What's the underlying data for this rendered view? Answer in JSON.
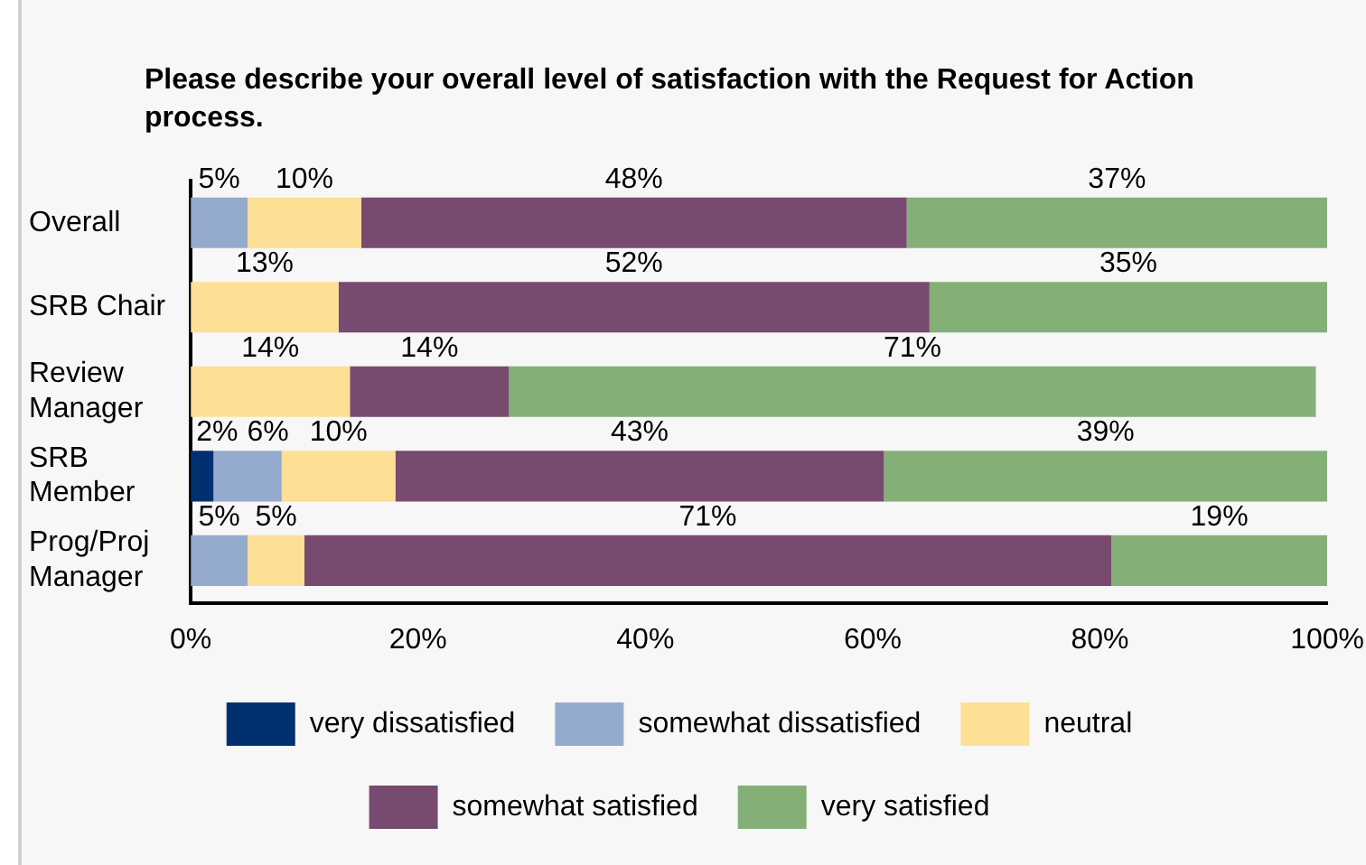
{
  "chart_data": {
    "type": "bar",
    "orientation": "horizontal",
    "stacked": true,
    "title": "Please describe your overall level of satisfaction with the Request for Action process.",
    "categories": [
      "Overall",
      "SRB Chair",
      "Review Manager",
      "SRB Member",
      "Prog/Proj Manager"
    ],
    "series": [
      {
        "name": "very dissatisfied",
        "color": "#003070",
        "values": [
          null,
          null,
          null,
          2,
          null
        ],
        "value_labels": [
          null,
          null,
          null,
          "2%",
          null
        ]
      },
      {
        "name": "somewhat dissatisfied",
        "color": "#95abcd",
        "values": [
          5,
          null,
          null,
          6,
          5
        ],
        "value_labels": [
          "5%",
          null,
          null,
          "6%",
          "5%"
        ]
      },
      {
        "name": "neutral",
        "color": "#fde096",
        "values": [
          10,
          13,
          14,
          10,
          5
        ],
        "value_labels": [
          "10%",
          "13%",
          "14%",
          "10%",
          "5%"
        ]
      },
      {
        "name": "somewhat satisfied",
        "color": "#784a70",
        "values": [
          48,
          52,
          14,
          43,
          71
        ],
        "value_labels": [
          "48%",
          "52%",
          "14%",
          "43%",
          "71%"
        ]
      },
      {
        "name": "very satisfied",
        "color": "#84b077",
        "values": [
          37,
          35,
          71,
          39,
          19
        ],
        "value_labels": [
          "37%",
          "35%",
          "71%",
          "39%",
          "19%"
        ]
      }
    ],
    "xlim": [
      0,
      100
    ],
    "xticks": [
      {
        "value": 0,
        "label": "0%"
      },
      {
        "value": 20,
        "label": "20%"
      },
      {
        "value": 40,
        "label": "40%"
      },
      {
        "value": 60,
        "label": "60%"
      },
      {
        "value": 80,
        "label": "80%"
      },
      {
        "value": 100,
        "label": "100%"
      }
    ],
    "grid": false,
    "legend": "bottom"
  }
}
